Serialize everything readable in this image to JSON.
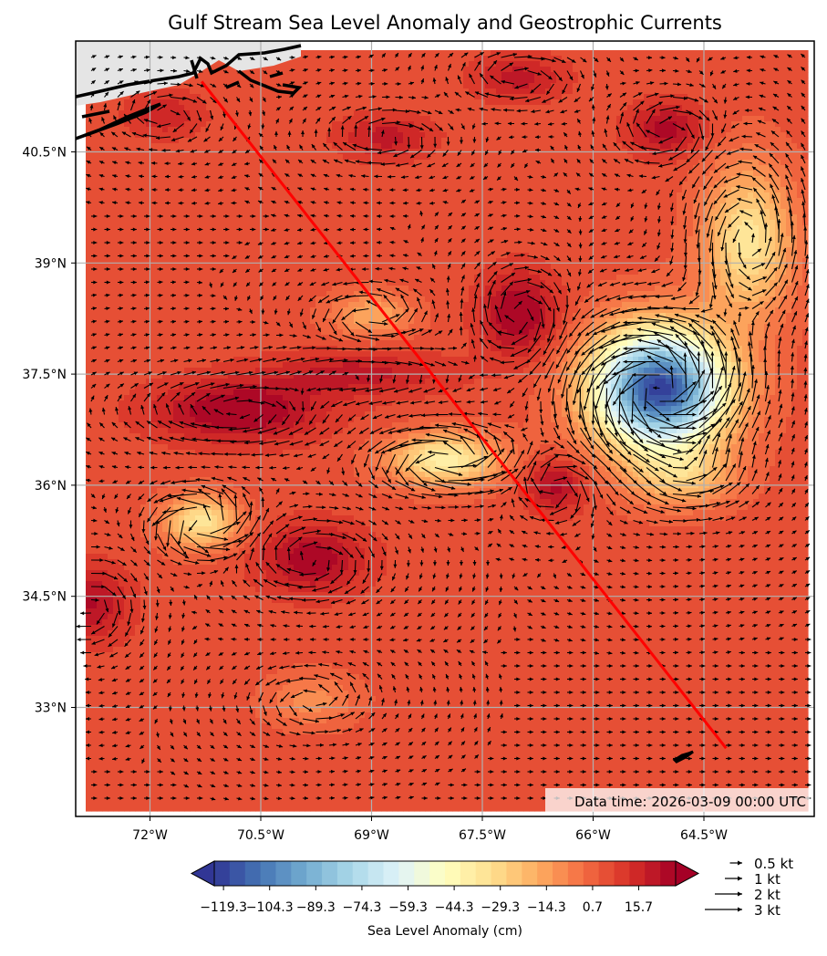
{
  "chart_data": {
    "type": "heatmap",
    "title": "Gulf Stream Sea Level Anomaly and Geostrophic Currents",
    "x_ticks": [
      "72°W",
      "70.5°W",
      "69°W",
      "67.5°W",
      "66°W",
      "64.5°W"
    ],
    "x_tick_values": [
      -72.0,
      -70.5,
      -69.0,
      -67.5,
      -66.0,
      -64.5
    ],
    "y_ticks": [
      "40.5°N",
      "39°N",
      "37.5°N",
      "36°N",
      "34.5°N",
      "33°N"
    ],
    "y_tick_values": [
      40.5,
      39.0,
      37.5,
      36.0,
      34.5,
      33.0
    ],
    "lon_range": [
      -73.0,
      -63.7
    ],
    "lat_range": [
      31.5,
      42.0
    ],
    "grid": true,
    "annotation": "Data time: 2026-03-09 00:00 UTC",
    "colorbar": {
      "label": "Sea Level Anomaly (cm)",
      "tick_labels": [
        "−119.3",
        "−104.3",
        "−89.3",
        "−74.3",
        "−59.3",
        "−44.3",
        "−29.3",
        "−14.3",
        "0.7",
        "15.7"
      ],
      "tick_values": [
        -119.3,
        -104.3,
        -89.3,
        -74.3,
        -59.3,
        -44.3,
        -29.3,
        -14.3,
        0.7,
        15.7
      ],
      "vmin": -122.3,
      "vmax": 27.7,
      "levels": 30,
      "colormap": "RdYlBu_r"
    },
    "quiver_legend": [
      {
        "label": "0.5 kt",
        "speed": 0.5
      },
      {
        "label": "1 kt",
        "speed": 1
      },
      {
        "label": "2 kt",
        "speed": 2
      },
      {
        "label": "3 kt",
        "speed": 3
      }
    ],
    "track": {
      "color": "#ff0000",
      "points": [
        [
          -71.3,
          41.45
        ],
        [
          -64.2,
          32.45
        ]
      ]
    },
    "background_sla_cm": 5,
    "eddies": [
      {
        "lon": -65.1,
        "lat": 37.3,
        "amp": -125,
        "rlon": 0.9,
        "rlat": 0.8
      },
      {
        "lon": -68.0,
        "lat": 36.35,
        "amp": -45,
        "rlon": 0.75,
        "rlat": 0.35
      },
      {
        "lon": -71.3,
        "lat": 35.5,
        "amp": -40,
        "rlon": 0.5,
        "rlat": 0.35
      },
      {
        "lon": -69.0,
        "lat": 38.3,
        "amp": -22,
        "rlon": 0.55,
        "rlat": 0.3
      },
      {
        "lon": -63.9,
        "lat": 39.3,
        "amp": -40,
        "rlon": 0.6,
        "rlat": 1.0
      },
      {
        "lon": -64.8,
        "lat": 36.1,
        "amp": -25,
        "rlon": 0.7,
        "rlat": 0.4
      },
      {
        "lon": -70.8,
        "lat": 37.0,
        "amp": 25,
        "rlon": 1.1,
        "rlat": 0.4
      },
      {
        "lon": -67.0,
        "lat": 38.3,
        "amp": 25,
        "rlon": 0.5,
        "rlat": 0.55
      },
      {
        "lon": -69.8,
        "lat": 35.0,
        "amp": 22,
        "rlon": 0.7,
        "rlat": 0.45
      },
      {
        "lon": -66.5,
        "lat": 36.0,
        "amp": 20,
        "rlon": 0.4,
        "rlat": 0.35
      },
      {
        "lon": -69.2,
        "lat": 37.5,
        "amp": 15,
        "rlon": 1.2,
        "rlat": 0.3
      },
      {
        "lon": -65.0,
        "lat": 40.8,
        "amp": 20,
        "rlon": 0.5,
        "rlat": 0.35
      },
      {
        "lon": -68.8,
        "lat": 40.7,
        "amp": 15,
        "rlon": 0.6,
        "rlat": 0.3
      },
      {
        "lon": -67.0,
        "lat": 41.5,
        "amp": 15,
        "rlon": 0.6,
        "rlat": 0.3
      },
      {
        "lon": -72.8,
        "lat": 34.4,
        "amp": 18,
        "rlon": 0.5,
        "rlat": 0.5
      },
      {
        "lon": -69.8,
        "lat": 33.1,
        "amp": -15,
        "rlon": 0.6,
        "rlat": 0.35
      },
      {
        "lon": -71.8,
        "lat": 41.0,
        "amp": 12,
        "rlon": 0.5,
        "rlat": 0.3
      }
    ]
  }
}
